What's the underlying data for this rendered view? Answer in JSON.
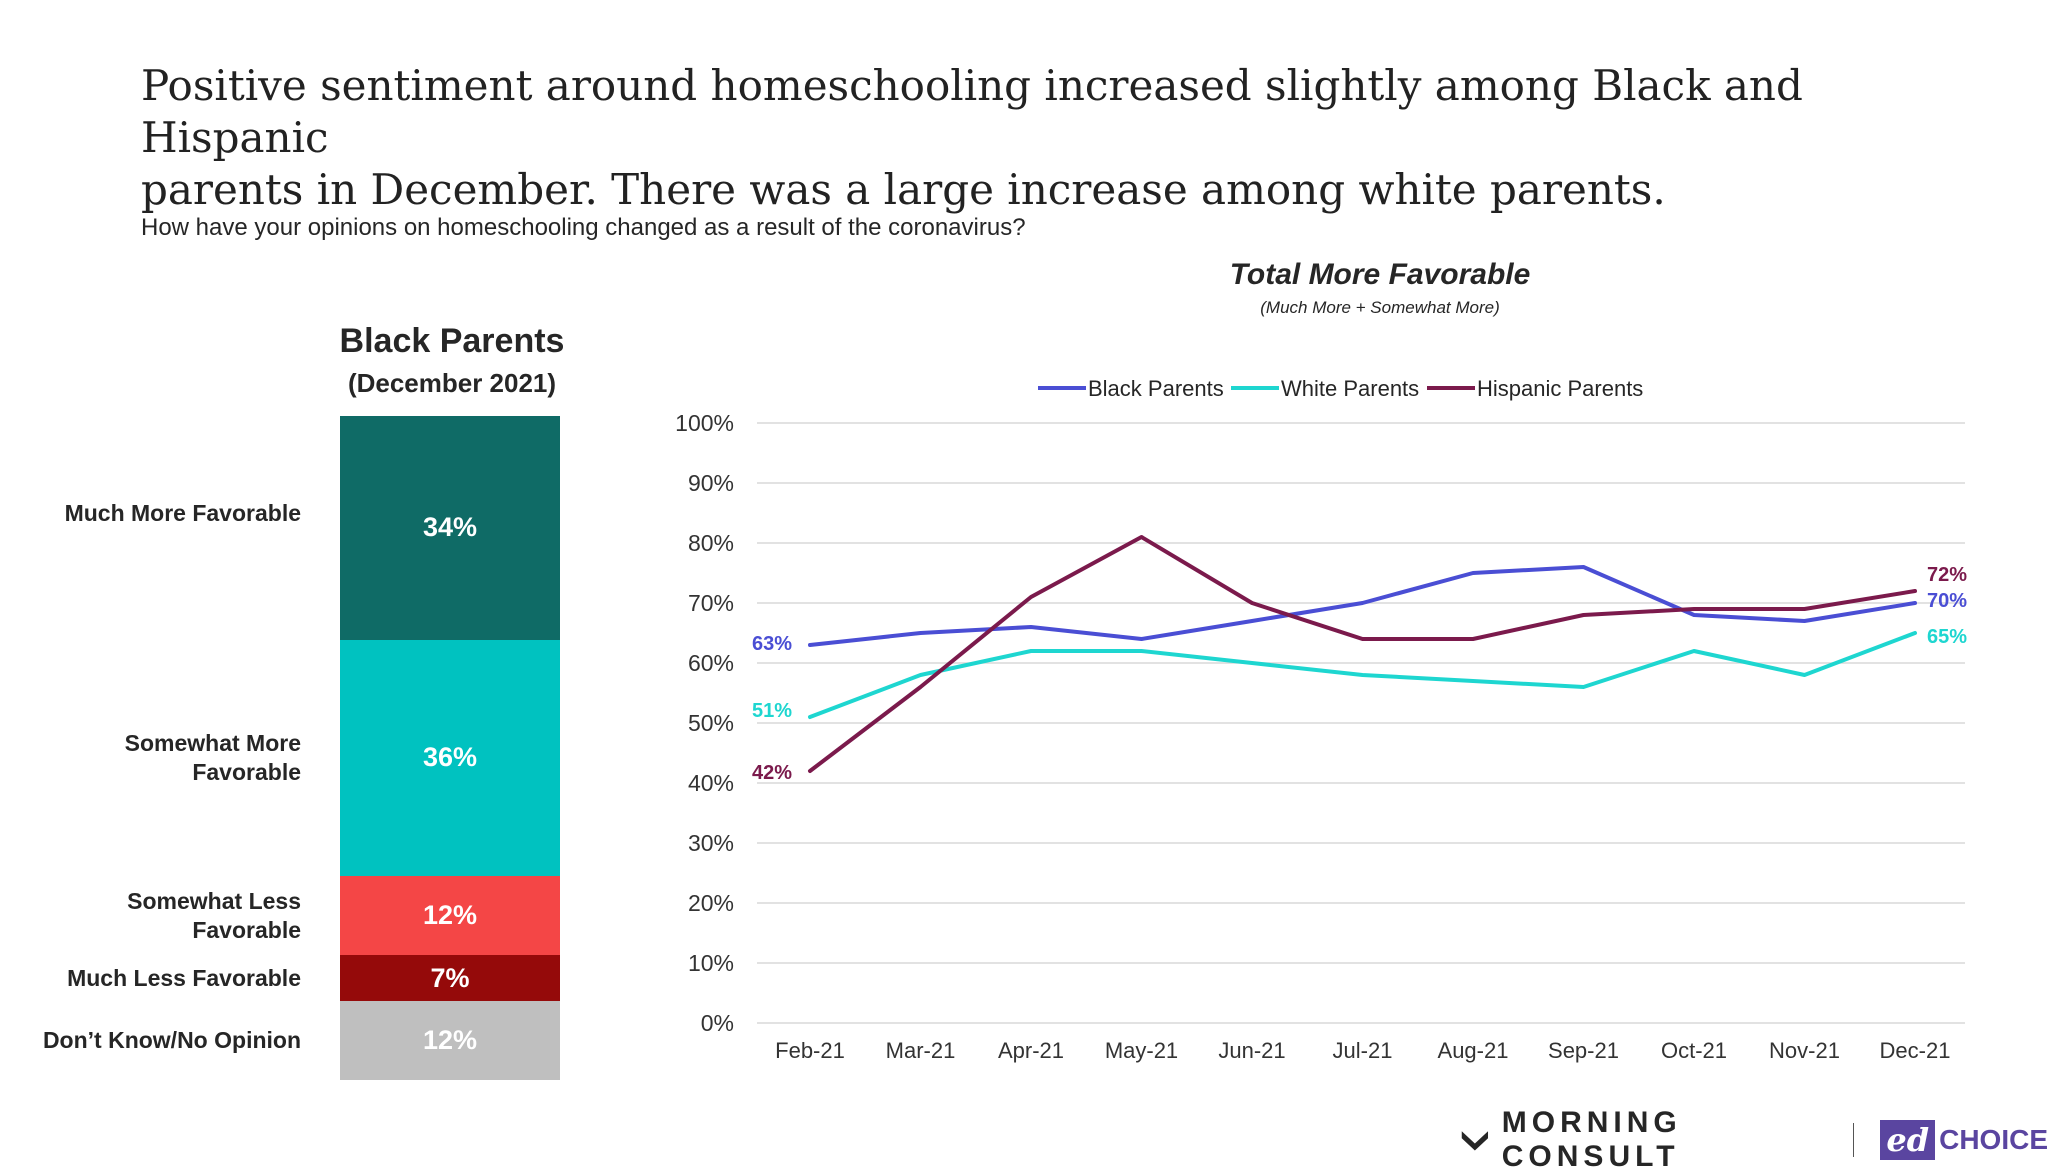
{
  "header": {
    "title_line1": "Positive sentiment around homeschooling increased slightly among Black and Hispanic",
    "title_line2": "parents in December. There was a large increase among white parents.",
    "question": "How have your opinions on homeschooling changed as a result of the coronavirus?"
  },
  "footer": {
    "brand1": "MORNING CONSULT",
    "brand2_mark": "ed",
    "brand2_text": "CHOICE"
  },
  "colors": {
    "much_more": "#0f6b66",
    "somewhat_more": "#00c2c0",
    "somewhat_less": "#f44646",
    "much_less": "#950a0a",
    "dont_know": "#bfbfbf",
    "black_parents": "#4a4ed4",
    "white_parents": "#1ed6d0",
    "hispanic_parents": "#7b1a4c",
    "grid": "#d9d9d9",
    "mc_logo": "#262626",
    "edchoice": "#5a45a0"
  },
  "chart_data": [
    {
      "type": "bar",
      "stacked": true,
      "title": "Black Parents",
      "subtitle": "(December 2021)",
      "categories": [
        "Much More Favorable",
        "Somewhat More Favorable",
        "Somewhat Less Favorable",
        "Much Less Favorable",
        "Don’t Know/No Opinion"
      ],
      "label_lines": [
        [
          "Much More Favorable"
        ],
        [
          "Somewhat More",
          "Favorable"
        ],
        [
          "Somewhat Less",
          "Favorable"
        ],
        [
          "Much Less Favorable"
        ],
        [
          "Don’t Know/No Opinion"
        ]
      ],
      "values": [
        34,
        36,
        12,
        7,
        12
      ],
      "value_labels": [
        "34%",
        "36%",
        "12%",
        "7%",
        "12%"
      ]
    },
    {
      "type": "line",
      "title": "Total More Favorable",
      "subtitle": "(Much More + Somewhat More)",
      "x": [
        "Feb-21",
        "Mar-21",
        "Apr-21",
        "May-21",
        "Jun-21",
        "Jul-21",
        "Aug-21",
        "Sep-21",
        "Oct-21",
        "Nov-21",
        "Dec-21"
      ],
      "y_ticks": [
        "0%",
        "10%",
        "20%",
        "30%",
        "40%",
        "50%",
        "60%",
        "70%",
        "80%",
        "90%",
        "100%"
      ],
      "ylim": [
        0,
        100
      ],
      "grid": true,
      "legend": "top",
      "series": [
        {
          "name": "Black Parents",
          "values": [
            63,
            65,
            66,
            64,
            67,
            70,
            75,
            76,
            68,
            67,
            70
          ],
          "start_label": "63%",
          "end_label": "70%"
        },
        {
          "name": "White Parents",
          "values": [
            51,
            58,
            62,
            62,
            60,
            58,
            57,
            56,
            62,
            58,
            65
          ],
          "start_label": "51%",
          "end_label": "65%"
        },
        {
          "name": "Hispanic Parents",
          "values": [
            42,
            56,
            71,
            81,
            70,
            64,
            64,
            68,
            69,
            69,
            72
          ],
          "start_label": "42%",
          "end_label": "72%"
        }
      ]
    }
  ]
}
